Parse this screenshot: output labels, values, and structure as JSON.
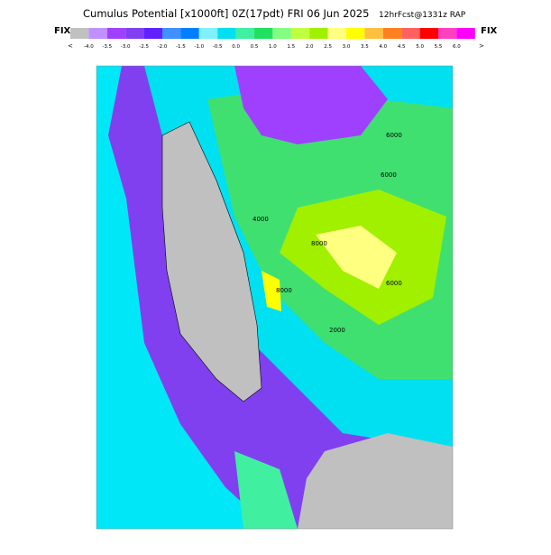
{
  "header": {
    "title": "Cumulus Potential [x1000ft] 0Z(17pdt) FRI 06 Jun 2025",
    "subtitle": "12hrFcst@1331z RAP",
    "fix_left": "FIX",
    "fix_right": "FIX"
  },
  "colorbar": {
    "less": "<",
    "more": ">",
    "colors": [
      "#c0c0c0",
      "#c090ff",
      "#a040ff",
      "#8040f0",
      "#6020ff",
      "#4090ff",
      "#0080ff",
      "#80f0ff",
      "#00e0f0",
      "#40f0a0",
      "#20e060",
      "#80ff80",
      "#c0ff40",
      "#a0f000",
      "#ffff80",
      "#ffff00",
      "#ffc040",
      "#ff8020",
      "#ff6060",
      "#ff0000",
      "#ff40c0",
      "#ff00ff"
    ],
    "labels": [
      "-4.0",
      "-3.5",
      "-3.0",
      "-2.5",
      "-2.0",
      "-1.5",
      "-1.0",
      "-0.5",
      "0.0",
      "0.5",
      "1.0",
      "1.5",
      "2.0",
      "2.5",
      "3.0",
      "3.5",
      "4.0",
      "4.5",
      "5.0",
      "5.5",
      "6.0"
    ]
  },
  "map": {
    "contour_labels": [
      "6000",
      "8000",
      "6000",
      "8000",
      "6000",
      "4000",
      "2000"
    ]
  }
}
